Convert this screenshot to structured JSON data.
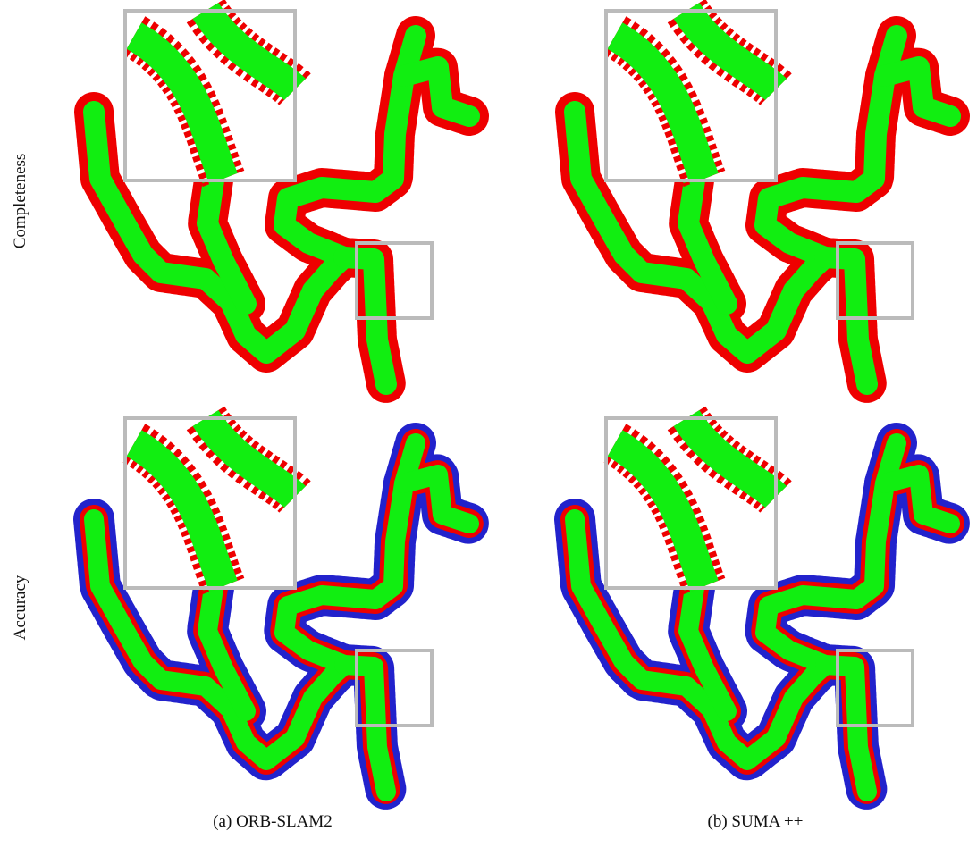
{
  "row_labels": [
    "Completeness",
    "Accuracy"
  ],
  "captions": [
    "(a) ORB-SLAM2",
    "(b) SUMA ++"
  ]
}
